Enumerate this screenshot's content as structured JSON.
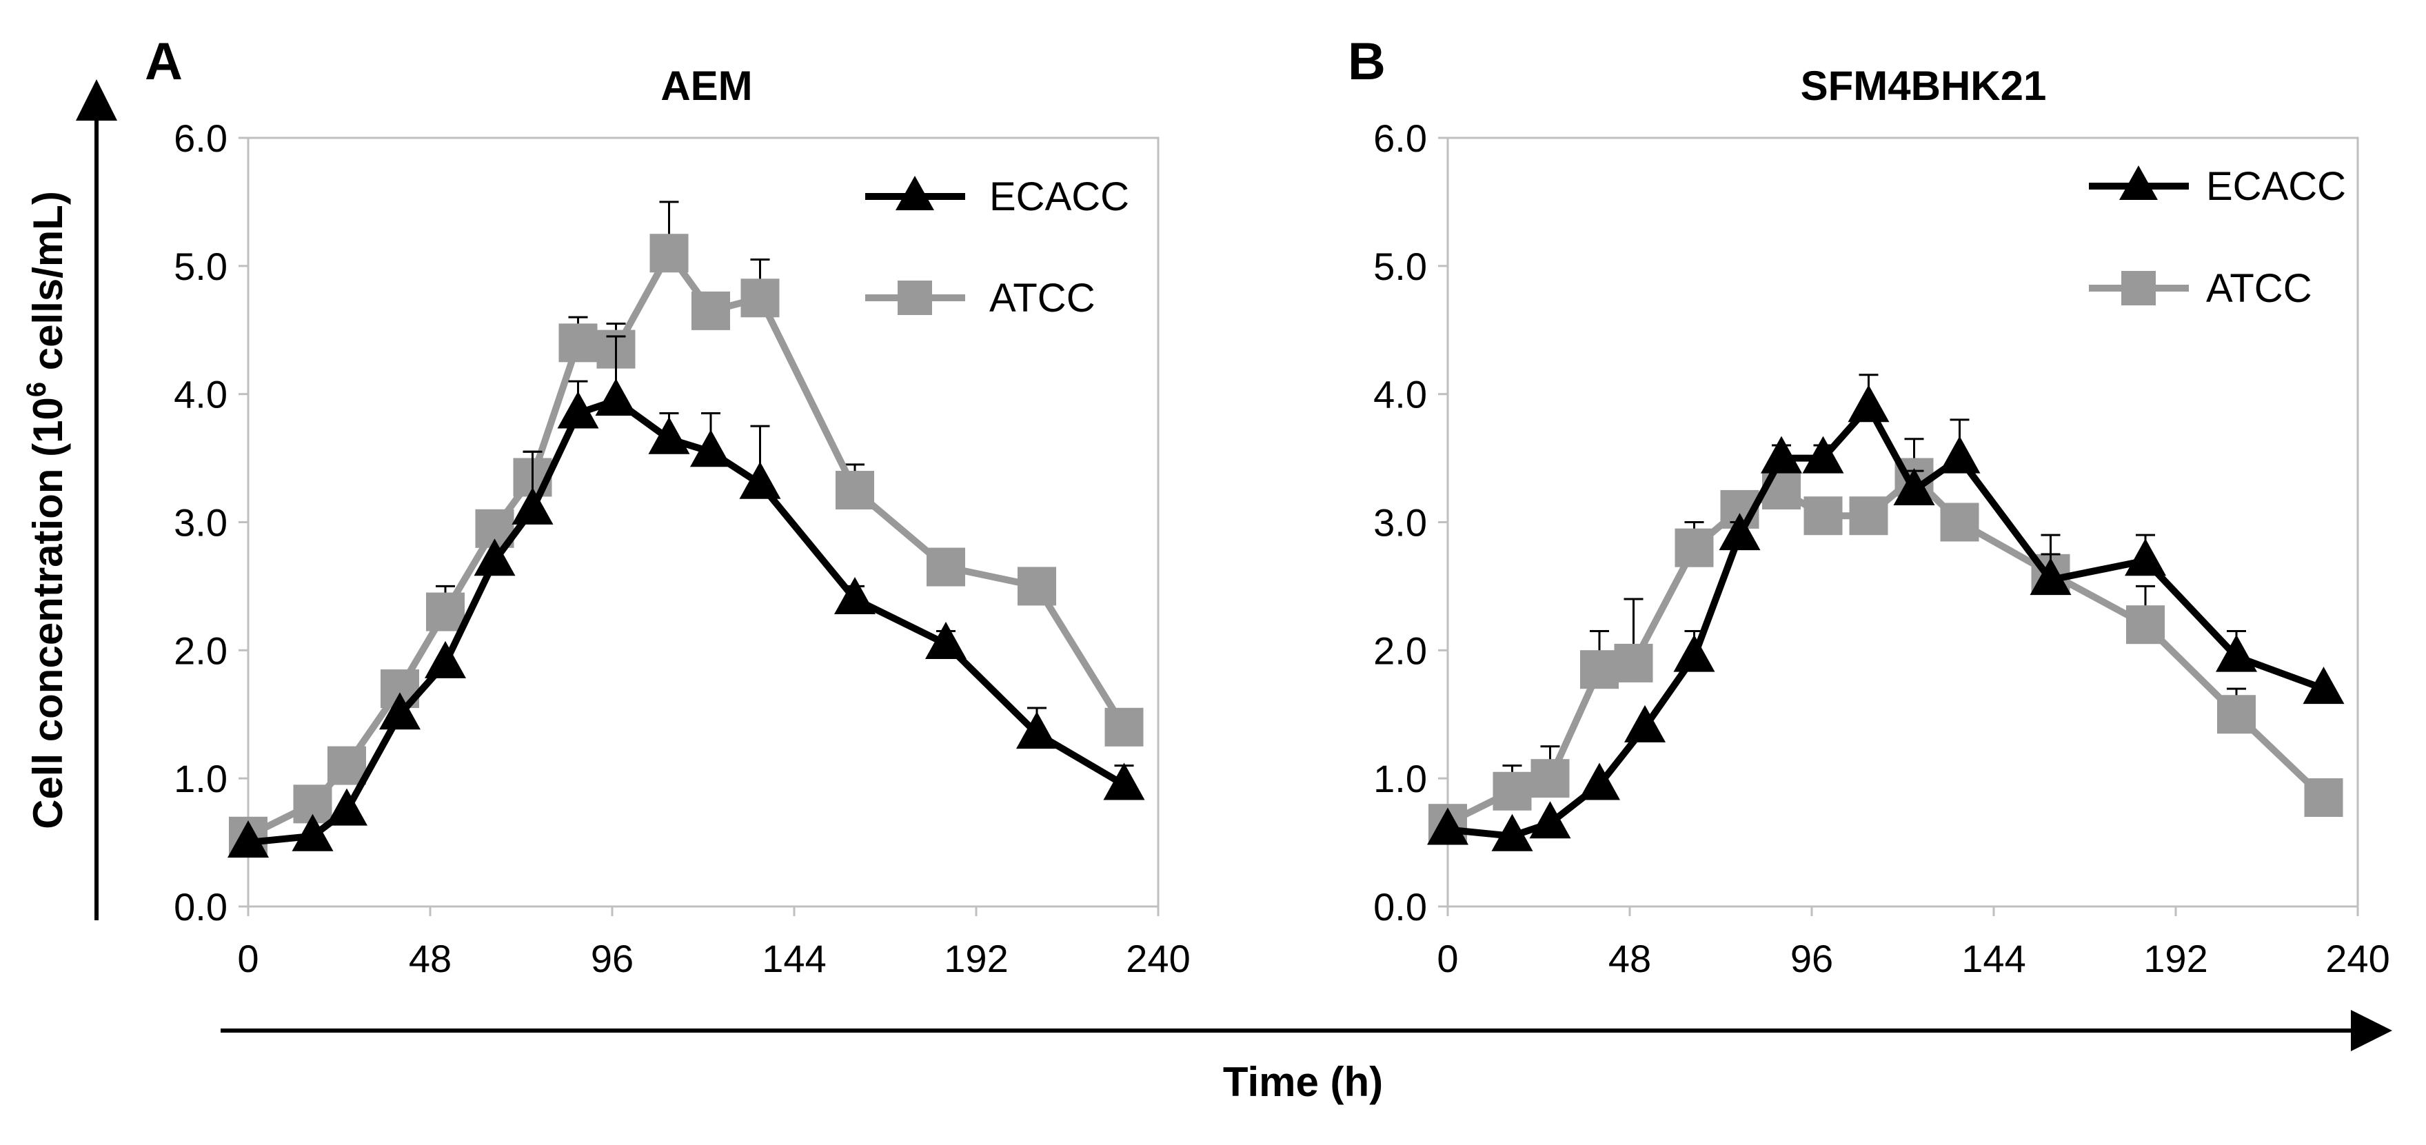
{
  "shared": {
    "ylabel_pre": "Cell concentration (10",
    "ylabel_sup": "6",
    "ylabel_post": " cells/mL)",
    "xlabel": "Time (h)"
  },
  "chart_data": [
    {
      "type": "line",
      "panel": "A",
      "title": "AEM",
      "xlim": [
        0,
        240
      ],
      "ylim": [
        0,
        6
      ],
      "xticks": [
        "0",
        "48",
        "96",
        "144",
        "192",
        "240"
      ],
      "yticks": [
        "0.0",
        "1.0",
        "2.0",
        "3.0",
        "4.0",
        "5.0",
        "6.0"
      ],
      "grid": false,
      "legend": "top-right",
      "series": [
        {
          "name": "ECACC",
          "marker": "triangle",
          "color": "#000000",
          "x": [
            0,
            17,
            26,
            40,
            52,
            65,
            75,
            87,
            97,
            111,
            122,
            135,
            160,
            184,
            208,
            231
          ],
          "y": [
            0.5,
            0.55,
            0.75,
            1.5,
            1.9,
            2.7,
            3.1,
            3.85,
            3.95,
            3.65,
            3.55,
            3.3,
            2.4,
            2.05,
            1.35,
            0.95
          ],
          "err": [
            0,
            0,
            0,
            0,
            0,
            0,
            0.45,
            0.25,
            0.5,
            0.2,
            0.3,
            0.45,
            0.1,
            0.1,
            0.2,
            0.15
          ]
        },
        {
          "name": "ATCC",
          "marker": "square",
          "color": "#999999",
          "x": [
            0,
            17,
            26,
            40,
            52,
            65,
            75,
            87,
            97,
            111,
            122,
            135,
            160,
            184,
            208,
            231
          ],
          "y": [
            0.55,
            0.8,
            1.1,
            1.7,
            2.3,
            2.95,
            3.35,
            4.4,
            4.35,
            5.1,
            4.65,
            4.75,
            3.25,
            2.65,
            2.5,
            1.4
          ],
          "err": [
            0,
            0,
            0,
            0,
            0.2,
            0,
            0.2,
            0.2,
            0.2,
            0.4,
            0,
            0.3,
            0.2,
            0,
            0,
            0
          ]
        }
      ]
    },
    {
      "type": "line",
      "panel": "B",
      "title": "SFM4BHK21",
      "xlim": [
        0,
        240
      ],
      "ylim": [
        0,
        6
      ],
      "xticks": [
        "0",
        "48",
        "96",
        "144",
        "192",
        "240"
      ],
      "yticks": [
        "0.0",
        "1.0",
        "2.0",
        "3.0",
        "4.0",
        "5.0",
        "6.0"
      ],
      "grid": false,
      "legend": "top-right",
      "series": [
        {
          "name": "ECACC",
          "marker": "triangle",
          "color": "#000000",
          "x": [
            0,
            17,
            27,
            40,
            52,
            65,
            77,
            88,
            99,
            111,
            123,
            135,
            159,
            184,
            208,
            231
          ],
          "y": [
            0.6,
            0.55,
            0.65,
            0.95,
            1.4,
            1.95,
            2.9,
            3.5,
            3.5,
            3.9,
            3.25,
            3.5,
            2.55,
            2.7,
            1.95,
            1.7
          ],
          "err": [
            0,
            0,
            0,
            0,
            0,
            0.2,
            0.1,
            0.1,
            0.1,
            0.25,
            0.15,
            0.3,
            0.2,
            0.2,
            0.2,
            0
          ]
        },
        {
          "name": "ATCC",
          "marker": "square",
          "color": "#999999",
          "x": [
            0,
            17,
            27,
            40,
            49,
            65,
            77,
            88,
            99,
            111,
            123,
            135,
            159,
            184,
            208,
            231
          ],
          "y": [
            0.65,
            0.9,
            1.0,
            1.85,
            1.9,
            2.8,
            3.1,
            3.25,
            3.05,
            3.05,
            3.35,
            3.0,
            2.6,
            2.2,
            1.5,
            0.85
          ],
          "err": [
            0,
            0.2,
            0.25,
            0.3,
            0.5,
            0.2,
            0,
            0,
            0,
            0,
            0.3,
            0,
            0.3,
            0.3,
            0.2,
            0
          ]
        }
      ]
    }
  ]
}
